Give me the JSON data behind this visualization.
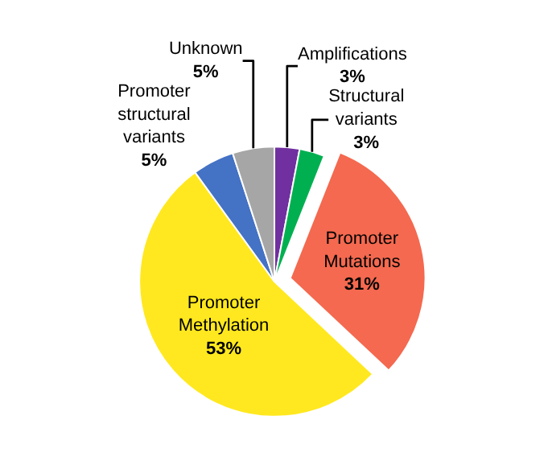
{
  "chart_data": {
    "type": "pie",
    "categories": [
      "Amplifications",
      "Structural variants",
      "Promoter Mutations",
      "Promoter Methylation",
      "Promoter structural variants",
      "Unknown"
    ],
    "values": [
      3,
      3,
      31,
      53,
      5,
      5
    ],
    "value_labels": [
      "3%",
      "3%",
      "31%",
      "53%",
      "5%",
      "5%"
    ],
    "colors": [
      "#7030a0",
      "#00b050",
      "#f4694f",
      "#ffe81f",
      "#4472c4",
      "#a6a6a6"
    ],
    "legend": false
  }
}
